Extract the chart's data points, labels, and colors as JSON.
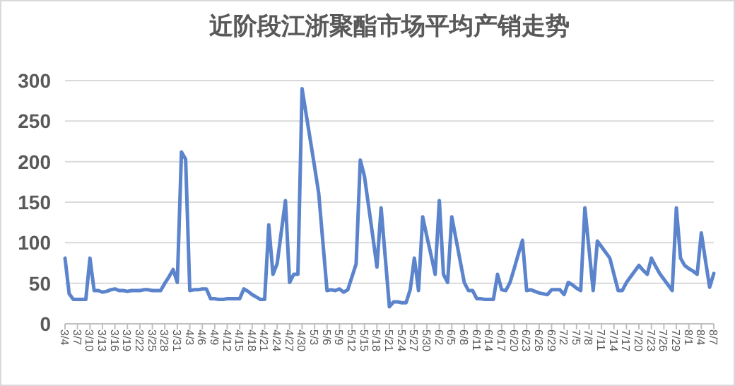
{
  "chart_data": {
    "type": "line",
    "title": "近阶段江浙聚酯市场平均产销走势",
    "categories": [
      "3/4",
      null,
      null,
      "3/7",
      null,
      null,
      "3/10",
      null,
      null,
      "3/13",
      null,
      null,
      "3/16",
      null,
      null,
      "3/19",
      null,
      null,
      "3/22",
      null,
      null,
      "3/25",
      null,
      null,
      "3/28",
      null,
      null,
      "3/31",
      null,
      null,
      "4/3",
      null,
      null,
      "4/6",
      null,
      null,
      "4/9",
      null,
      null,
      "4/12",
      null,
      null,
      "4/15",
      null,
      null,
      "4/18",
      null,
      null,
      "4/21",
      null,
      null,
      "4/24",
      null,
      null,
      "4/27",
      null,
      null,
      "4/30",
      null,
      null,
      "5/3",
      null,
      null,
      "5/6",
      null,
      null,
      "5/9",
      null,
      null,
      "5/12",
      null,
      null,
      "5/15",
      null,
      null,
      "5/18",
      null,
      null,
      "5/21",
      null,
      null,
      "5/24",
      null,
      null,
      "5/27",
      null,
      null,
      "5/30",
      null,
      null,
      "6/2",
      null,
      null,
      "6/5",
      null,
      null,
      "6/8",
      null,
      null,
      "6/11",
      null,
      null,
      "6/14",
      null,
      null,
      "6/17",
      null,
      null,
      "6/20",
      null,
      null,
      "6/23",
      null,
      null,
      "6/26",
      null,
      null,
      "6/29",
      null,
      null,
      "7/2",
      null,
      null,
      "7/5",
      null,
      null,
      "7/8",
      null,
      null,
      "7/11",
      null,
      null,
      "7/14",
      null,
      null,
      "7/17",
      null,
      null,
      "7/20",
      null,
      null,
      "7/23",
      null,
      null,
      "7/26",
      null,
      null,
      "7/29",
      null,
      null,
      "8/1",
      null,
      null,
      "8/4",
      null,
      null,
      "8/7"
    ],
    "series": [
      {
        "color": "#5b84cc",
        "values": [
          81,
          37,
          30,
          30,
          30,
          30,
          81,
          41,
          41,
          39,
          40,
          42,
          43,
          41,
          41,
          40,
          41,
          41,
          41,
          42,
          42,
          41,
          41,
          41,
          50,
          58,
          67,
          51,
          212,
          203,
          41,
          42,
          42,
          43,
          43,
          31,
          31,
          30,
          30,
          31,
          31,
          31,
          31,
          43,
          40,
          36,
          33,
          30,
          30,
          122,
          61,
          74,
          113,
          152,
          51,
          61,
          61,
          290,
          258,
          226,
          194,
          161,
          101,
          41,
          42,
          41,
          43,
          39,
          42,
          58,
          74,
          202,
          182,
          145,
          108,
          70,
          143,
          82,
          21,
          27,
          27,
          26,
          26,
          42,
          81,
          41,
          132,
          108,
          85,
          61,
          152,
          61,
          51,
          132,
          105,
          78,
          51,
          41,
          41,
          31,
          31,
          30,
          30,
          30,
          61,
          42,
          41,
          51,
          68,
          86,
          103,
          41,
          42,
          40,
          38,
          37,
          36,
          42,
          42,
          42,
          36,
          51,
          48,
          44,
          41,
          143,
          92,
          41,
          102,
          95,
          88,
          81,
          61,
          41,
          41,
          51,
          58,
          65,
          72,
          66,
          61,
          81,
          71,
          62,
          55,
          48,
          41,
          143,
          81,
          72,
          68,
          65,
          61,
          112,
          78,
          45,
          62
        ]
      }
    ],
    "ylim": [
      0,
      300
    ],
    "yticks": [
      0,
      50,
      100,
      150,
      200,
      250,
      300
    ],
    "grid": "y"
  }
}
